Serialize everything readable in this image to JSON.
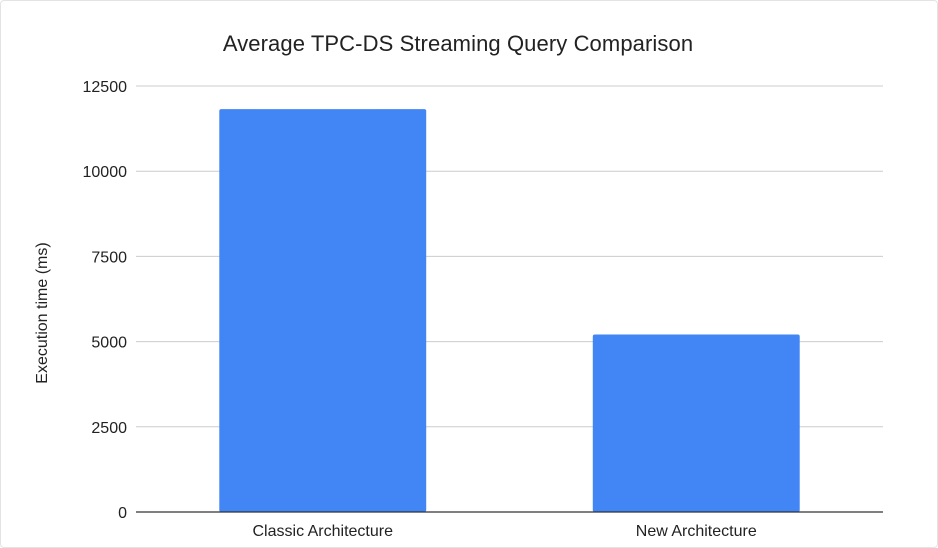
{
  "chart_data": {
    "type": "bar",
    "title": "Average TPC-DS Streaming Query Comparison",
    "xlabel": "",
    "ylabel": "Execution time (ms)",
    "categories": [
      "Classic Architecture",
      "New Architecture"
    ],
    "values": [
      11820,
      5210
    ],
    "ylim": [
      0,
      12500
    ],
    "yticks": [
      0,
      2500,
      5000,
      7500,
      10000,
      12500
    ],
    "ytick_labels": [
      "0",
      "2500",
      "5000",
      "7500",
      "10000",
      "12500"
    ],
    "grid": true,
    "legend": "none",
    "colors": {
      "bar": "#4285f4",
      "grid": "#cccccc",
      "axis": "#333333"
    }
  }
}
